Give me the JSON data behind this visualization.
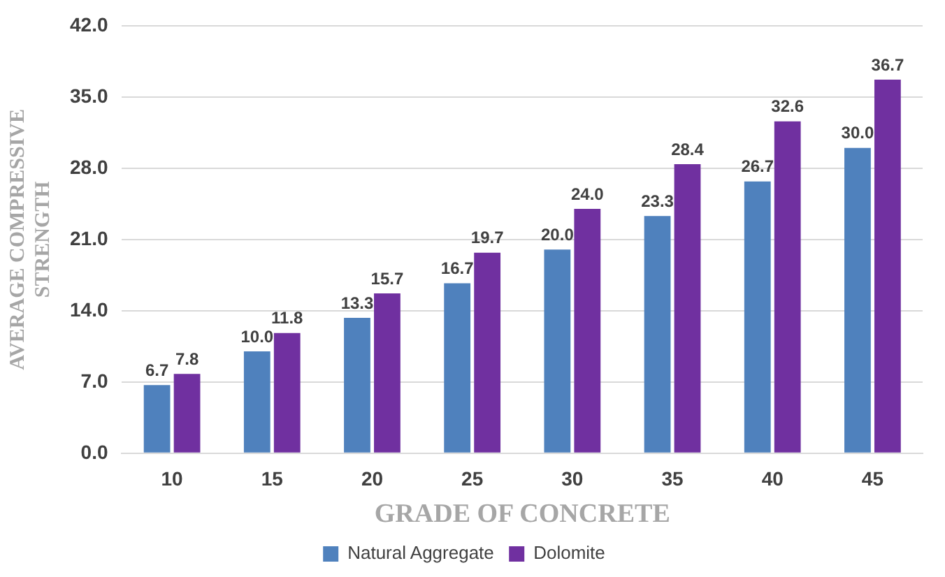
{
  "chart_data": {
    "type": "bar",
    "xlabel": "GRADE OF CONCRETE",
    "ylabel": "AVERAGE COMPRESSIVE STRENGTH",
    "categories": [
      "10",
      "15",
      "20",
      "25",
      "30",
      "35",
      "40",
      "45"
    ],
    "series": [
      {
        "name": "Natural Aggregate",
        "color": "#4f81bd",
        "values": [
          6.7,
          10.0,
          13.3,
          16.7,
          20.0,
          23.3,
          26.7,
          30.0
        ],
        "value_labels": [
          "6.7",
          "10.0",
          "13.3",
          "16.7",
          "20.0",
          "23.3",
          "26.7",
          "30.0"
        ]
      },
      {
        "name": "Dolomite",
        "color": "#7030a0",
        "values": [
          7.8,
          11.8,
          15.7,
          19.7,
          24.0,
          28.4,
          32.6,
          36.7
        ],
        "value_labels": [
          "7.8",
          "11.8",
          "15.7",
          "19.7",
          "24.0",
          "28.4",
          "32.6",
          "36.7"
        ]
      }
    ],
    "ylim": [
      0,
      42
    ],
    "yticks": [
      {
        "value": 0,
        "label": "0.0"
      },
      {
        "value": 7,
        "label": "7.0"
      },
      {
        "value": 14,
        "label": "14.0"
      },
      {
        "value": 21,
        "label": "21.0"
      },
      {
        "value": 28,
        "label": "28.0"
      },
      {
        "value": 35,
        "label": "35.0"
      },
      {
        "value": 42,
        "label": "42.0"
      }
    ],
    "grid": "y",
    "legend": "bottom"
  }
}
